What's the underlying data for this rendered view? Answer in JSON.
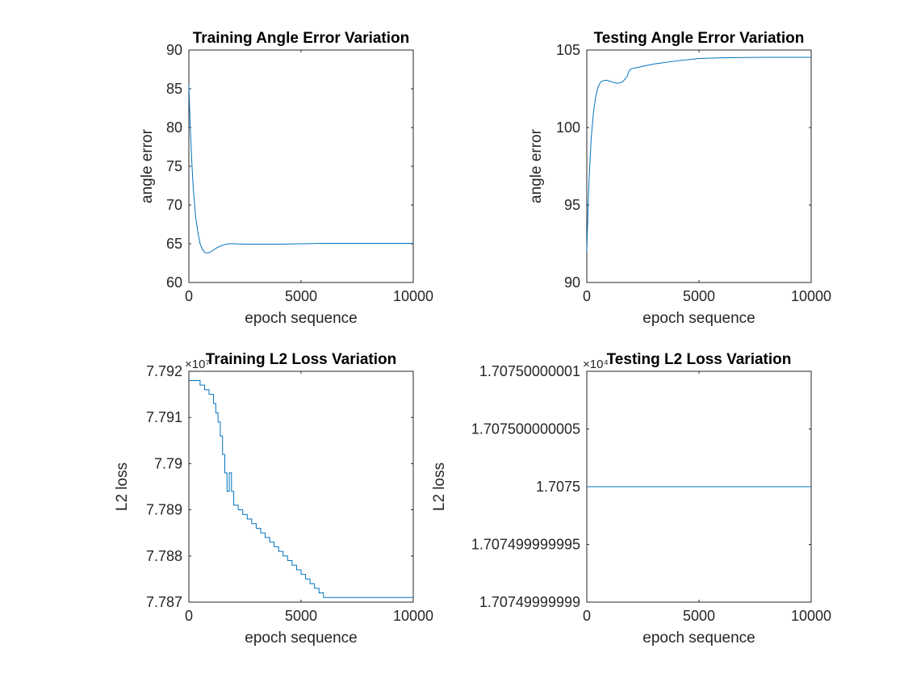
{
  "chart_data": [
    {
      "id": "train-angle",
      "type": "line",
      "title": "Training Angle Error Variation",
      "xlabel": "epoch sequence",
      "ylabel": "angle error",
      "exponent": "",
      "xlim": [
        0,
        10000
      ],
      "ylim": [
        60,
        90
      ],
      "xticks": [
        0,
        5000,
        10000
      ],
      "xtick_labels": [
        "0",
        "5000",
        "10000"
      ],
      "yticks": [
        60,
        65,
        70,
        75,
        80,
        85,
        90
      ],
      "ytick_labels": [
        "60",
        "65",
        "70",
        "75",
        "80",
        "85",
        "90"
      ],
      "series": [
        {
          "color": "#0072bd",
          "x": [
            0,
            50,
            100,
            150,
            200,
            300,
            400,
            500,
            600,
            700,
            800,
            900,
            1000,
            1200,
            1400,
            1600,
            1800,
            2000,
            2500,
            3000,
            4000,
            5000,
            6000,
            7000,
            8000,
            9000,
            10000
          ],
          "y": [
            85.5,
            81,
            77.5,
            74.5,
            72,
            68.5,
            66.5,
            65,
            64.3,
            63.9,
            63.8,
            63.85,
            64,
            64.4,
            64.7,
            64.9,
            65,
            65,
            64.95,
            64.95,
            64.95,
            65,
            65.05,
            65.05,
            65.05,
            65.05,
            65.05
          ]
        }
      ]
    },
    {
      "id": "test-angle",
      "type": "line",
      "title": "Testing Angle Error Variation",
      "xlabel": "epoch sequence",
      "ylabel": "angle error",
      "exponent": "",
      "xlim": [
        0,
        10000
      ],
      "ylim": [
        90,
        105
      ],
      "xticks": [
        0,
        5000,
        10000
      ],
      "xtick_labels": [
        "0",
        "5000",
        "10000"
      ],
      "yticks": [
        90,
        95,
        100,
        105
      ],
      "ytick_labels": [
        "90",
        "95",
        "100",
        "105"
      ],
      "series": [
        {
          "color": "#0072bd",
          "x": [
            0,
            50,
            100,
            200,
            300,
            400,
            500,
            600,
            700,
            800,
            900,
            1000,
            1200,
            1400,
            1600,
            1800,
            1900,
            2000,
            2500,
            3000,
            4000,
            5000,
            6000,
            7000,
            8000,
            9000,
            10000
          ],
          "y": [
            92,
            94.5,
            96.6,
            99.4,
            101,
            102,
            102.6,
            102.9,
            103,
            103.05,
            103.05,
            103,
            102.9,
            102.85,
            102.95,
            103.3,
            103.7,
            103.8,
            103.95,
            104.1,
            104.3,
            104.45,
            104.5,
            104.52,
            104.53,
            104.53,
            104.53
          ]
        }
      ]
    },
    {
      "id": "train-l2",
      "type": "line",
      "title": "Training L2 Loss Variation",
      "xlabel": "epoch sequence",
      "ylabel": "L2 loss",
      "exponent": "×10⁷",
      "xlim": [
        0,
        10000
      ],
      "ylim": [
        7.787,
        7.792
      ],
      "xticks": [
        0,
        5000,
        10000
      ],
      "xtick_labels": [
        "0",
        "5000",
        "10000"
      ],
      "yticks": [
        7.787,
        7.788,
        7.789,
        7.79,
        7.791,
        7.792
      ],
      "ytick_labels": [
        "7.787",
        "7.788",
        "7.789",
        "7.79",
        "7.791",
        "7.792"
      ],
      "series": [
        {
          "color": "#0072bd",
          "step": true,
          "x": [
            0,
            500,
            700,
            900,
            1100,
            1200,
            1300,
            1400,
            1500,
            1600,
            1700,
            1800,
            1900,
            2000,
            2200,
            2400,
            2600,
            2800,
            3000,
            3200,
            3400,
            3600,
            3800,
            4000,
            4200,
            4400,
            4600,
            4800,
            5000,
            5200,
            5400,
            5600,
            5800,
            6000,
            10000
          ],
          "y": [
            7.7918,
            7.7917,
            7.7916,
            7.7915,
            7.7913,
            7.7911,
            7.7909,
            7.7906,
            7.7902,
            7.7898,
            7.7894,
            7.7898,
            7.7894,
            7.7891,
            7.789,
            7.7889,
            7.7888,
            7.7887,
            7.7886,
            7.7885,
            7.7884,
            7.7883,
            7.7882,
            7.7881,
            7.788,
            7.7879,
            7.7878,
            7.7877,
            7.7876,
            7.7875,
            7.7874,
            7.7873,
            7.7872,
            7.7871,
            7.7871
          ]
        }
      ]
    },
    {
      "id": "test-l2",
      "type": "line",
      "title": "Testing L2 Loss Variation",
      "xlabel": "epoch sequence",
      "ylabel": "L2 loss",
      "exponent": "×10⁴",
      "xlim": [
        0,
        10000
      ],
      "ylim": [
        1.70749999999,
        1.70750000001
      ],
      "xticks": [
        0,
        5000,
        10000
      ],
      "xtick_labels": [
        "0",
        "5000",
        "10000"
      ],
      "yticks": [
        1.70749999999,
        1.707499999995,
        1.7075,
        1.707500000005,
        1.70750000001
      ],
      "ytick_labels": [
        "1.70749999999",
        "1.707499999995",
        "1.7075",
        "1.707500000005",
        "1.70750000001"
      ],
      "series": [
        {
          "color": "#0072bd",
          "x": [
            0,
            10000
          ],
          "y": [
            1.7075,
            1.7075
          ]
        }
      ]
    }
  ]
}
